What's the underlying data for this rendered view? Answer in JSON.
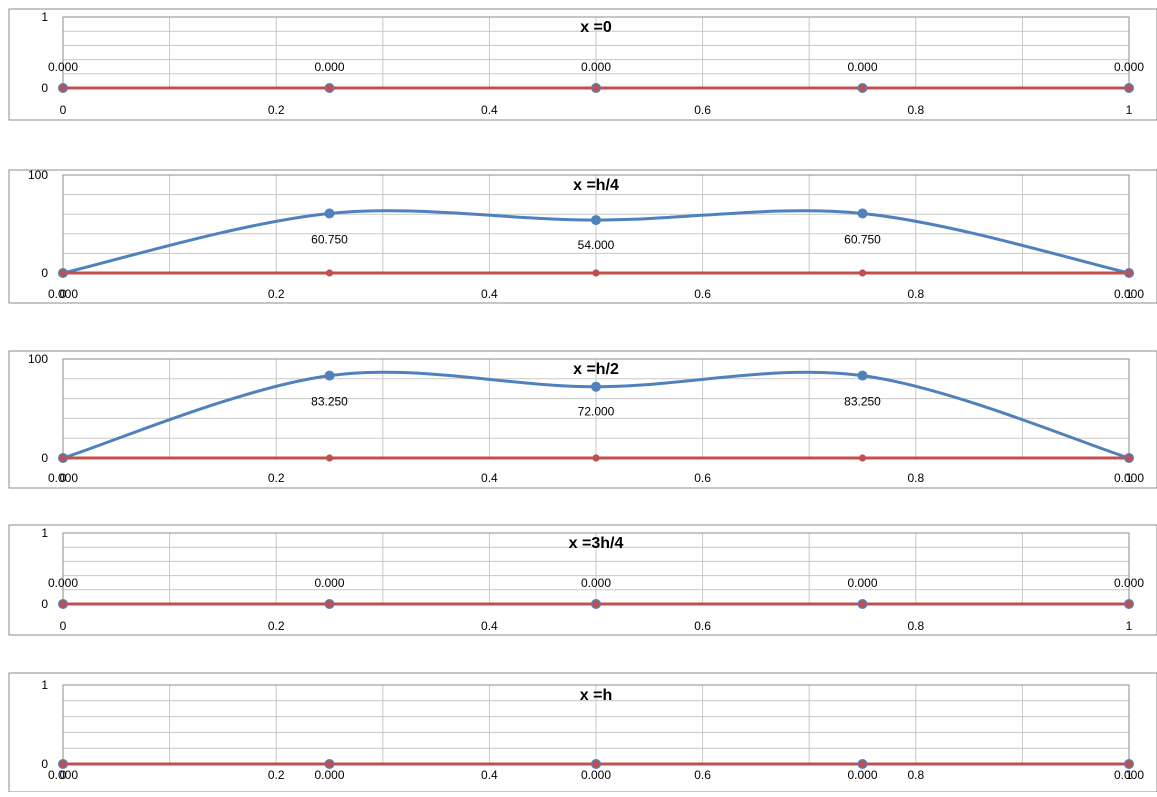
{
  "colors": {
    "series_smooth": "#4f81bd",
    "series_line": "#c0504d",
    "gridline": "#c8c8c8",
    "frame": "#8c8c8c"
  },
  "chart_data": [
    {
      "type": "line",
      "title": "x =0",
      "x": [
        0,
        0.25,
        0.5,
        0.75,
        1
      ],
      "series": [
        {
          "values": [
            0,
            0,
            0,
            0,
            0
          ],
          "color": "#4f81bd",
          "smooth": true,
          "data_labels": [
            "0.000",
            "0.000",
            "0.000",
            "0.000",
            "0.000"
          ]
        },
        {
          "values": [
            0,
            0,
            0,
            0,
            0
          ],
          "color": "#c0504d"
        }
      ],
      "ylim": [
        0,
        1
      ],
      "xlim": [
        0,
        1
      ],
      "y_ticks": [
        "1",
        "0"
      ],
      "x_ticks": [
        "0",
        "0.2",
        "0.4",
        "0.6",
        "0.8",
        "1"
      ],
      "grid": true
    },
    {
      "type": "line",
      "title": "x =h/4",
      "x": [
        0,
        0.25,
        0.5,
        0.75,
        1
      ],
      "series": [
        {
          "values": [
            0,
            60.75,
            54,
            60.75,
            0
          ],
          "color": "#4f81bd",
          "smooth": true,
          "data_labels": [
            "0.000",
            "60.750",
            "54.000",
            "60.750",
            "0.000"
          ]
        },
        {
          "values": [
            0,
            0,
            0,
            0,
            0
          ],
          "color": "#c0504d"
        }
      ],
      "ylim": [
        0,
        100
      ],
      "xlim": [
        0,
        1
      ],
      "y_ticks": [
        "100",
        "0"
      ],
      "x_ticks": [
        "0",
        "0.2",
        "0.4",
        "0.6",
        "0.8",
        "1"
      ],
      "grid": true
    },
    {
      "type": "line",
      "title": "x =h/2",
      "x": [
        0,
        0.25,
        0.5,
        0.75,
        1
      ],
      "series": [
        {
          "values": [
            0,
            83.25,
            72,
            83.25,
            0
          ],
          "color": "#4f81bd",
          "smooth": true,
          "data_labels": [
            "0.000",
            "83.250",
            "72.000",
            "83.250",
            "0.000"
          ]
        },
        {
          "values": [
            0,
            0,
            0,
            0,
            0
          ],
          "color": "#c0504d"
        }
      ],
      "ylim": [
        0,
        100
      ],
      "xlim": [
        0,
        1
      ],
      "y_ticks": [
        "100",
        "0"
      ],
      "x_ticks": [
        "0",
        "0.2",
        "0.4",
        "0.6",
        "0.8",
        "1"
      ],
      "grid": true
    },
    {
      "type": "line",
      "title": "x =3h/4",
      "x": [
        0,
        0.25,
        0.5,
        0.75,
        1
      ],
      "series": [
        {
          "values": [
            0,
            0,
            0,
            0,
            0
          ],
          "color": "#4f81bd",
          "smooth": true,
          "data_labels": [
            "0.000",
            "0.000",
            "0.000",
            "0.000",
            "0.000"
          ]
        },
        {
          "values": [
            0,
            0,
            0,
            0,
            0
          ],
          "color": "#c0504d"
        }
      ],
      "ylim": [
        0,
        1
      ],
      "xlim": [
        0,
        1
      ],
      "y_ticks": [
        "1",
        "0"
      ],
      "x_ticks": [
        "0",
        "0.2",
        "0.4",
        "0.6",
        "0.8",
        "1"
      ],
      "grid": true
    },
    {
      "type": "line",
      "title": "x =h",
      "x": [
        0,
        0.25,
        0.5,
        0.75,
        1
      ],
      "series": [
        {
          "values": [
            0,
            0,
            0,
            0,
            0
          ],
          "color": "#4f81bd",
          "smooth": true,
          "data_labels": [
            "0.000",
            "0.000",
            "0.000",
            "0.000",
            "0.000"
          ]
        },
        {
          "values": [
            0,
            0,
            0,
            0,
            0
          ],
          "color": "#c0504d"
        }
      ],
      "ylim": [
        0,
        1
      ],
      "xlim": [
        0,
        1
      ],
      "y_ticks": [
        "1",
        "0"
      ],
      "x_ticks": [
        "0",
        "0.2",
        "0.4",
        "0.6",
        "0.8",
        "1"
      ],
      "grid": true
    }
  ]
}
